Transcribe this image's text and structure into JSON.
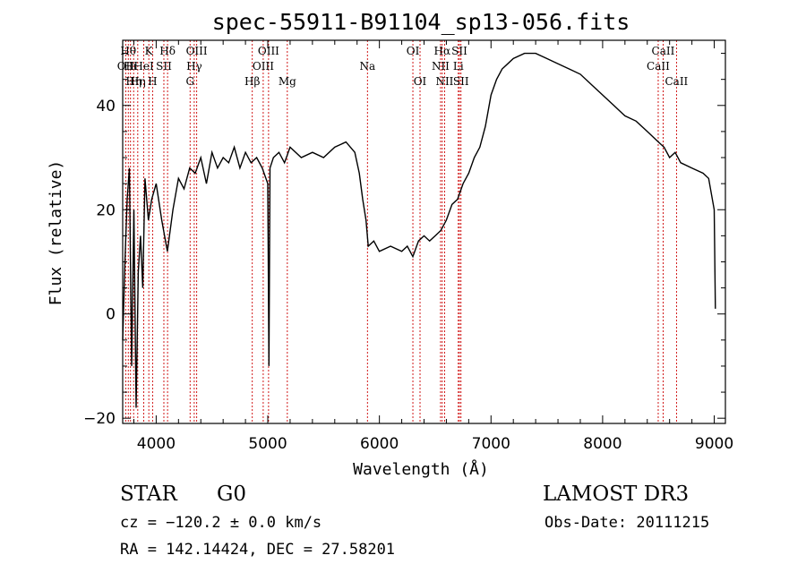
{
  "chart_data": {
    "type": "line",
    "title": "spec-55911-B91104_sp13-056.fits",
    "xlabel": "Wavelength (Å)",
    "ylabel": "Flux (relative)",
    "xlim": [
      3700,
      9100
    ],
    "ylim": [
      -21,
      52.5
    ],
    "xticks": [
      4000,
      5000,
      6000,
      7000,
      8000,
      9000
    ],
    "yticks": [
      -20,
      0,
      20,
      40
    ],
    "xtick_labels": [
      "4000",
      "5000",
      "6000",
      "7000",
      "8000",
      "9000"
    ],
    "ytick_labels": [
      "−20",
      "0",
      "20",
      "40"
    ],
    "line_color": "#000000",
    "marker_color": "#cc0000",
    "series": [
      {
        "name": "flux",
        "x": [
          3700,
          3720,
          3740,
          3760,
          3780,
          3800,
          3820,
          3840,
          3860,
          3880,
          3900,
          3930,
          3960,
          4000,
          4050,
          4100,
          4150,
          4200,
          4250,
          4300,
          4350,
          4400,
          4450,
          4500,
          4550,
          4600,
          4650,
          4700,
          4750,
          4800,
          4850,
          4900,
          4950,
          5000,
          5010,
          5020,
          5050,
          5100,
          5150,
          5200,
          5300,
          5400,
          5500,
          5600,
          5700,
          5780,
          5820,
          5850,
          5880,
          5900,
          5950,
          6000,
          6100,
          6200,
          6250,
          6300,
          6350,
          6400,
          6450,
          6500,
          6550,
          6600,
          6650,
          6700,
          6750,
          6800,
          6850,
          6900,
          6950,
          7000,
          7050,
          7100,
          7150,
          7200,
          7300,
          7400,
          7500,
          7600,
          7700,
          7800,
          7900,
          8000,
          8100,
          8200,
          8300,
          8400,
          8500,
          8550,
          8600,
          8650,
          8700,
          8800,
          8900,
          8950,
          9000,
          9010
        ],
        "y": [
          -5,
          10,
          22,
          28,
          -10,
          20,
          -18,
          8,
          15,
          5,
          26,
          18,
          22,
          25,
          18,
          12,
          20,
          26,
          24,
          28,
          27,
          30,
          25,
          31,
          28,
          30,
          29,
          32,
          28,
          31,
          29,
          30,
          28,
          25,
          -10,
          28,
          30,
          31,
          29,
          32,
          30,
          31,
          30,
          32,
          33,
          31,
          27,
          22,
          18,
          13,
          14,
          12,
          13,
          12,
          13,
          11,
          14,
          15,
          14,
          15,
          16,
          18,
          21,
          22,
          25,
          27,
          30,
          32,
          36,
          42,
          45,
          47,
          48,
          49,
          50,
          50,
          49,
          48,
          47,
          46,
          44,
          42,
          40,
          38,
          37,
          35,
          33,
          32,
          30,
          31,
          29,
          28,
          27,
          26,
          20,
          1
        ]
      }
    ],
    "lines": [
      {
        "x": 3727,
        "name": "OII",
        "row": 2
      },
      {
        "x": 3750,
        "name": "Hθ",
        "row": 1
      },
      {
        "x": 3770,
        "name": "Hι",
        "row": 2
      },
      {
        "x": 3798,
        "name": "Hη",
        "row": 3
      },
      {
        "x": 3835,
        "name": "Hη",
        "row": 3
      },
      {
        "x": 3889,
        "name": "HeI",
        "row": 2
      },
      {
        "x": 3934,
        "name": "K",
        "row": 1
      },
      {
        "x": 3968,
        "name": "H",
        "row": 3
      },
      {
        "x": 4069,
        "name": "SII",
        "row": 2
      },
      {
        "x": 4102,
        "name": "Hδ",
        "row": 1
      },
      {
        "x": 4304,
        "name": "G",
        "row": 3
      },
      {
        "x": 4341,
        "name": "Hγ",
        "row": 2
      },
      {
        "x": 4363,
        "name": "OIII",
        "row": 1
      },
      {
        "x": 4861,
        "name": "Hβ",
        "row": 3
      },
      {
        "x": 4959,
        "name": "OIII",
        "row": 2
      },
      {
        "x": 5007,
        "name": "OIII",
        "row": 1
      },
      {
        "x": 5175,
        "name": "Mg",
        "row": 3
      },
      {
        "x": 5893,
        "name": "Na",
        "row": 2
      },
      {
        "x": 6300,
        "name": "OI",
        "row": 1
      },
      {
        "x": 6364,
        "name": "OI",
        "row": 3
      },
      {
        "x": 6548,
        "name": "NII",
        "row": 2
      },
      {
        "x": 6563,
        "name": "Hα",
        "row": 1
      },
      {
        "x": 6584,
        "name": "NII",
        "row": 3
      },
      {
        "x": 6707,
        "name": "Li",
        "row": 2
      },
      {
        "x": 6717,
        "name": "SII",
        "row": 1
      },
      {
        "x": 6731,
        "name": "SII",
        "row": 3
      },
      {
        "x": 8498,
        "name": "CaII",
        "row": 2
      },
      {
        "x": 8542,
        "name": "CaII",
        "row": 1
      },
      {
        "x": 8662,
        "name": "CaII",
        "row": 3
      }
    ]
  },
  "info": {
    "class_label": "STAR",
    "subclass": "G0",
    "survey": "LAMOST DR3",
    "redshift": "cz = −120.2 ± 0.0 km/s",
    "obs_date": "Obs-Date: 20111215",
    "coords": "RA = 142.14424, DEC =  27.58201"
  }
}
